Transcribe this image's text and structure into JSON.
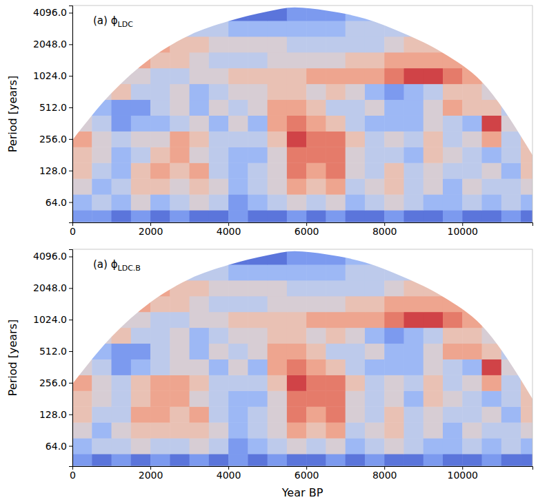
{
  "chart_data": [
    {
      "type": "heatmap",
      "title": "(a) ϕ",
      "title_subscript": "LDC",
      "ylabel": "Period [years]",
      "log": "y",
      "xlim": [
        0,
        11800
      ],
      "ylim": [
        41,
        4800
      ],
      "xticks": [
        0,
        2000,
        4000,
        6000,
        8000,
        10000
      ],
      "yticks": [
        {
          "value": 64,
          "label": "64.0"
        },
        {
          "value": 128,
          "label": "128.0"
        },
        {
          "value": 256,
          "label": "256.0"
        },
        {
          "value": 512,
          "label": "512.0"
        },
        {
          "value": 1024,
          "label": "1024.0"
        },
        {
          "value": 2048,
          "label": "2048.0"
        },
        {
          "value": 4096,
          "label": "4096.0"
        }
      ],
      "clim": [
        0,
        10
      ],
      "x_edges": [
        0,
        500,
        1000,
        1500,
        2000,
        2500,
        3000,
        3500,
        4000,
        4500,
        5000,
        5500,
        6000,
        6500,
        7000,
        7500,
        8000,
        8500,
        9000,
        9500,
        10000,
        10500,
        11000,
        11500,
        12000
      ],
      "period_edges": [
        38.1,
        53.8,
        76.1,
        107.6,
        152.2,
        215.3,
        304.4,
        430.5,
        608.9,
        861.1,
        1217.8,
        1722.2,
        2435.5,
        3444.3,
        4871
      ],
      "values": [
        [
          2,
          2,
          1,
          2,
          1,
          2,
          1,
          1,
          2,
          1,
          1,
          2,
          1,
          2,
          1,
          1,
          2,
          1,
          1,
          2,
          1,
          1,
          2,
          1
        ],
        [
          3,
          4,
          3,
          5,
          3,
          4,
          5,
          4,
          2,
          3,
          4,
          5,
          4,
          5,
          3,
          4,
          5,
          4,
          3,
          3,
          4,
          3,
          4,
          3
        ],
        [
          5,
          3,
          4,
          6,
          6,
          5,
          6,
          5,
          3,
          4,
          5,
          7,
          6,
          7,
          4,
          5,
          6,
          4,
          5,
          3,
          5,
          4,
          4,
          5
        ],
        [
          6,
          4,
          3,
          6,
          7,
          6,
          7,
          4,
          3,
          4,
          5,
          8,
          7,
          8,
          5,
          4,
          6,
          4,
          5,
          4,
          4,
          5,
          3,
          6
        ],
        [
          6,
          5,
          3,
          4,
          6,
          7,
          5,
          4,
          3,
          3,
          5,
          8,
          8,
          8,
          5,
          4,
          4,
          3,
          6,
          5,
          4,
          3,
          4,
          6
        ],
        [
          7,
          5,
          4,
          5,
          5,
          7,
          6,
          4,
          4,
          4,
          6,
          9,
          8,
          8,
          6,
          4,
          5,
          4,
          6,
          4,
          5,
          7,
          4,
          6
        ],
        [
          5,
          4,
          2,
          3,
          3,
          4,
          5,
          3,
          5,
          3,
          7,
          8,
          7,
          6,
          4,
          3,
          3,
          3,
          5,
          4,
          3,
          9,
          5,
          6
        ],
        [
          3,
          3,
          2,
          2,
          4,
          5,
          3,
          5,
          4,
          5,
          7,
          7,
          6,
          4,
          4,
          5,
          3,
          3,
          5,
          7,
          6,
          6,
          4,
          7
        ],
        [
          4,
          5,
          6,
          4,
          4,
          5,
          3,
          4,
          5,
          5,
          6,
          6,
          5,
          6,
          5,
          3,
          2,
          3,
          4,
          6,
          6,
          5,
          6,
          5
        ],
        [
          7,
          6,
          5,
          5,
          4,
          4,
          5,
          5,
          6,
          6,
          6,
          6,
          7,
          7,
          7,
          7,
          8,
          9,
          9,
          8,
          7,
          6,
          6,
          6
        ],
        [
          8,
          7,
          7,
          7,
          6,
          6,
          5,
          4,
          4,
          4,
          5,
          5,
          5,
          5,
          6,
          6,
          7,
          7,
          7,
          7,
          7,
          6,
          6,
          6
        ],
        [
          6,
          6,
          7,
          7,
          7,
          6,
          6,
          5,
          5,
          5,
          5,
          4,
          4,
          4,
          4,
          4,
          5,
          6,
          6,
          5,
          5,
          5,
          5,
          5
        ],
        [
          5,
          5,
          5,
          5,
          4,
          4,
          4,
          4,
          3,
          3,
          3,
          3,
          3,
          3,
          4,
          4,
          4,
          4,
          4,
          4,
          4,
          4,
          4,
          4
        ],
        [
          4,
          4,
          4,
          4,
          3,
          3,
          3,
          2,
          1,
          1,
          1,
          2,
          2,
          2,
          3,
          3,
          3,
          3,
          3,
          3,
          3,
          3,
          3,
          3
        ]
      ],
      "coi": {
        "x": [
          0,
          1000,
          2000,
          3000,
          4000,
          5000,
          5700,
          6500,
          7500,
          8500,
          9500,
          10500,
          11800
        ],
        "period": [
          250,
          700,
          1500,
          2500,
          3400,
          4200,
          4600,
          4300,
          3600,
          2600,
          1700,
          900,
          180
        ]
      }
    },
    {
      "type": "heatmap",
      "title": "(a) ϕ",
      "title_subscript": "LDC.B",
      "ylabel": "Period [years]",
      "xlabel": "Year BP",
      "log": "y",
      "xlim": [
        0,
        11800
      ],
      "ylim": [
        41,
        4800
      ],
      "xticks": [
        0,
        2000,
        4000,
        6000,
        8000,
        10000
      ],
      "yticks": [
        {
          "value": 64,
          "label": "64.0"
        },
        {
          "value": 128,
          "label": "128.0"
        },
        {
          "value": 256,
          "label": "256.0"
        },
        {
          "value": 512,
          "label": "512.0"
        },
        {
          "value": 1024,
          "label": "1024.0"
        },
        {
          "value": 2048,
          "label": "2048.0"
        },
        {
          "value": 4096,
          "label": "4096.0"
        }
      ],
      "clim": [
        0,
        10
      ],
      "x_edges": [
        0,
        500,
        1000,
        1500,
        2000,
        2500,
        3000,
        3500,
        4000,
        4500,
        5000,
        5500,
        6000,
        6500,
        7000,
        7500,
        8000,
        8500,
        9000,
        9500,
        10000,
        10500,
        11000,
        11500,
        12000
      ],
      "period_edges": [
        38.1,
        53.8,
        76.1,
        107.6,
        152.2,
        215.3,
        304.4,
        430.5,
        608.9,
        861.1,
        1217.8,
        1722.2,
        2435.5,
        3444.3,
        4871
      ],
      "values": [
        [
          2,
          1,
          2,
          1,
          2,
          1,
          2,
          1,
          2,
          1,
          2,
          1,
          1,
          2,
          1,
          2,
          1,
          1,
          2,
          1,
          1,
          2,
          1,
          1
        ],
        [
          3,
          4,
          4,
          5,
          4,
          4,
          5,
          4,
          2,
          3,
          4,
          5,
          4,
          5,
          3,
          4,
          5,
          4,
          3,
          3,
          4,
          3,
          4,
          3
        ],
        [
          5,
          3,
          5,
          6,
          6,
          6,
          6,
          5,
          3,
          4,
          5,
          7,
          6,
          7,
          4,
          5,
          6,
          4,
          5,
          3,
          5,
          4,
          4,
          5
        ],
        [
          6,
          4,
          4,
          7,
          7,
          6,
          7,
          4,
          3,
          4,
          5,
          8,
          7,
          8,
          5,
          4,
          6,
          4,
          5,
          4,
          4,
          5,
          3,
          6
        ],
        [
          6,
          5,
          4,
          6,
          7,
          7,
          5,
          4,
          3,
          3,
          5,
          8,
          8,
          8,
          5,
          4,
          5,
          3,
          6,
          5,
          4,
          3,
          4,
          6
        ],
        [
          7,
          5,
          4,
          6,
          7,
          7,
          6,
          4,
          4,
          4,
          6,
          9,
          8,
          8,
          6,
          4,
          5,
          4,
          6,
          4,
          5,
          7,
          4,
          6
        ],
        [
          5,
          4,
          2,
          3,
          4,
          5,
          5,
          3,
          5,
          3,
          7,
          8,
          7,
          6,
          4,
          3,
          3,
          3,
          5,
          4,
          3,
          9,
          5,
          6
        ],
        [
          3,
          3,
          2,
          2,
          4,
          5,
          3,
          5,
          4,
          5,
          7,
          7,
          6,
          4,
          4,
          5,
          3,
          3,
          5,
          7,
          7,
          6,
          4,
          7
        ],
        [
          4,
          5,
          6,
          4,
          4,
          5,
          3,
          4,
          5,
          5,
          6,
          6,
          5,
          6,
          5,
          3,
          2,
          3,
          4,
          6,
          6,
          5,
          6,
          5
        ],
        [
          7,
          6,
          5,
          5,
          4,
          4,
          5,
          5,
          6,
          6,
          6,
          6,
          7,
          7,
          7,
          7,
          8,
          9,
          9,
          8,
          7,
          6,
          6,
          6
        ],
        [
          8,
          7,
          7,
          7,
          6,
          6,
          5,
          4,
          4,
          4,
          5,
          5,
          5,
          5,
          6,
          6,
          7,
          7,
          7,
          7,
          7,
          6,
          6,
          6
        ],
        [
          6,
          6,
          7,
          7,
          7,
          6,
          6,
          5,
          5,
          5,
          5,
          4,
          4,
          4,
          4,
          4,
          5,
          6,
          6,
          5,
          5,
          5,
          5,
          5
        ],
        [
          5,
          5,
          5,
          5,
          4,
          4,
          4,
          4,
          3,
          3,
          3,
          3,
          3,
          3,
          4,
          4,
          4,
          4,
          4,
          4,
          4,
          4,
          4,
          4
        ],
        [
          4,
          4,
          4,
          4,
          3,
          3,
          3,
          2,
          1,
          1,
          1,
          2,
          2,
          2,
          3,
          3,
          3,
          3,
          3,
          3,
          3,
          3,
          3,
          3
        ]
      ],
      "coi": {
        "x": [
          0,
          1000,
          2000,
          3000,
          4000,
          5000,
          5700,
          6500,
          7500,
          8500,
          9500,
          10500,
          11800
        ],
        "period": [
          250,
          700,
          1500,
          2500,
          3400,
          4200,
          4600,
          4300,
          3600,
          2600,
          1700,
          900,
          180
        ]
      }
    }
  ]
}
